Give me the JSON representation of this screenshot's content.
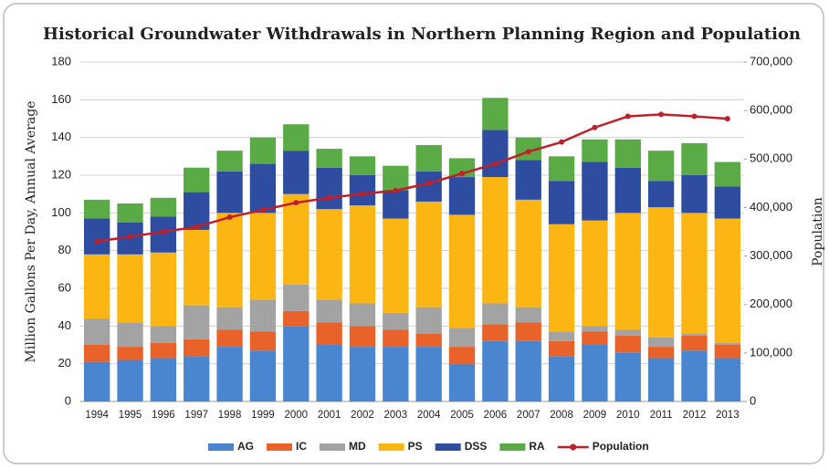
{
  "chart_data": {
    "type": "bar",
    "title": "Historical Groundwater Withdrawals in Northern Planning Region and Population",
    "y_label": "Million Gallons Per Day, Annual Average",
    "y2_label": "Population",
    "stacked": true,
    "categories": [
      "1994",
      "1995",
      "1996",
      "1997",
      "1998",
      "1999",
      "2000",
      "2001",
      "2002",
      "2003",
      "2004",
      "2005",
      "2006",
      "2007",
      "2008",
      "2009",
      "2010",
      "2011",
      "2012",
      "2013"
    ],
    "series": [
      {
        "name": "AG",
        "color": "#4a86d0",
        "values": [
          21,
          22,
          23,
          24,
          29,
          27,
          40,
          30,
          29,
          29,
          29,
          20,
          32,
          32,
          24,
          30,
          26,
          23,
          27,
          23
        ]
      },
      {
        "name": "IC",
        "color": "#e8622a",
        "values": [
          9,
          7,
          8,
          9,
          9,
          10,
          8,
          12,
          11,
          9,
          7,
          9,
          9,
          10,
          8,
          7,
          9,
          6,
          8,
          7
        ]
      },
      {
        "name": "MD",
        "color": "#a3a3a3",
        "values": [
          14,
          13,
          9,
          18,
          12,
          17,
          14,
          12,
          12,
          9,
          14,
          10,
          11,
          8,
          5,
          3,
          3,
          5,
          1,
          1
        ]
      },
      {
        "name": "PS",
        "color": "#fbb614",
        "values": [
          34,
          36,
          39,
          40,
          50,
          46,
          48,
          48,
          52,
          50,
          56,
          60,
          67,
          57,
          57,
          56,
          62,
          69,
          64,
          66
        ]
      },
      {
        "name": "DSS",
        "color": "#2e4da0",
        "values": [
          19,
          17,
          19,
          20,
          22,
          26,
          23,
          22,
          16,
          15,
          16,
          20,
          25,
          21,
          23,
          31,
          24,
          14,
          20,
          17
        ]
      },
      {
        "name": "RA",
        "color": "#5aab45",
        "values": [
          10,
          10,
          10,
          13,
          11,
          14,
          14,
          10,
          10,
          13,
          14,
          10,
          17,
          12,
          13,
          12,
          15,
          16,
          17,
          13
        ]
      },
      {
        "name": "Population",
        "color": "#c0202a",
        "type": "line",
        "axis": "y2",
        "values": [
          330000,
          340000,
          350000,
          360000,
          380000,
          395000,
          410000,
          420000,
          428000,
          435000,
          450000,
          470000,
          490000,
          515000,
          535000,
          565000,
          588000,
          592000,
          588000,
          583000
        ]
      }
    ],
    "ylim": [
      0,
      180
    ],
    "yticks": [
      0,
      20,
      40,
      60,
      80,
      100,
      120,
      140,
      160,
      180
    ],
    "y2lim": [
      0,
      700000
    ],
    "y2ticks": [
      0,
      {
        "value": 100000,
        "label": "100,000"
      },
      {
        "value": 200000,
        "label": "200,000"
      },
      {
        "value": 300000,
        "label": "300,000"
      },
      {
        "value": 400000,
        "label": "400,000"
      },
      {
        "value": 500000,
        "label": "500,000"
      },
      {
        "value": 600000,
        "label": "600,000"
      },
      {
        "value": 700000,
        "label": "700,000"
      }
    ],
    "grid": true,
    "legend": "bottom"
  }
}
